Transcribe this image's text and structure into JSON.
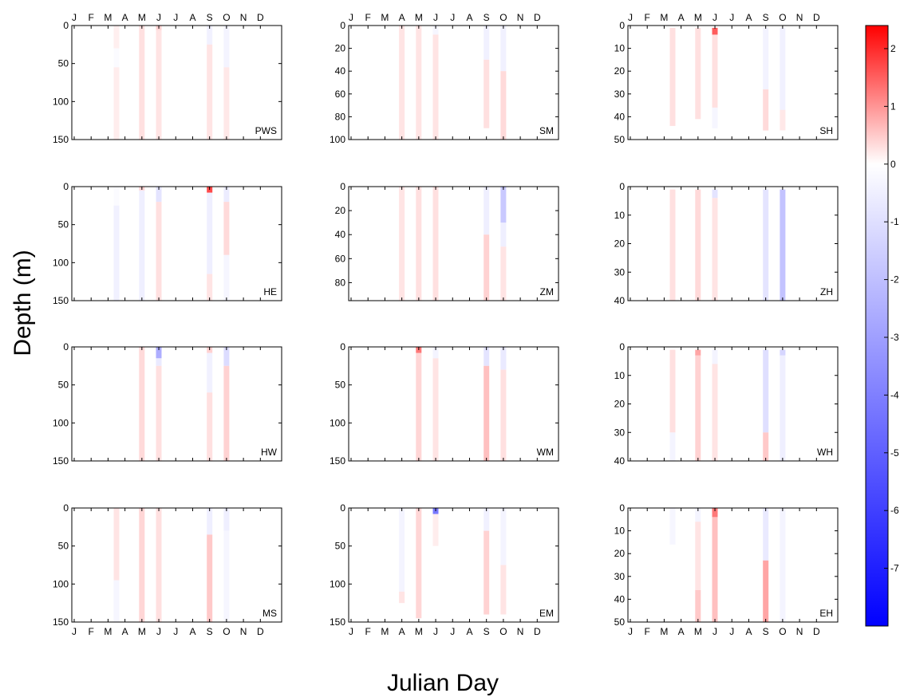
{
  "figure": {
    "xlabel": "Julian Day",
    "ylabel": "Depth (m)"
  },
  "months": [
    "J",
    "F",
    "M",
    "A",
    "M",
    "J",
    "J",
    "A",
    "S",
    "O",
    "N",
    "D"
  ],
  "colorbar": {
    "ticks": [
      "2",
      "1",
      "0",
      "-1",
      "-2",
      "-3",
      "-4",
      "-5",
      "-6",
      "-7"
    ],
    "tick_values": [
      2,
      1,
      0,
      -1,
      -2,
      -3,
      -4,
      -5,
      -6,
      -7
    ],
    "range": [
      -8,
      2.4
    ],
    "colors": {
      "max": "#ff0000",
      "zero": "#ffffff",
      "min": "#0000ff"
    }
  },
  "chart_data": [
    {
      "type": "heatmap",
      "label": "PWS",
      "ylim": [
        0,
        150
      ],
      "yticks": [
        0,
        50,
        100,
        150
      ],
      "profiles": [
        {
          "month": 3.5,
          "top": 0,
          "bottom": 150,
          "segments": [
            [
              0,
              30,
              0.18
            ],
            [
              30,
              55,
              -0.15
            ],
            [
              55,
              150,
              0.2
            ]
          ]
        },
        {
          "month": 5.0,
          "top": 0,
          "bottom": 150,
          "segments": [
            [
              0,
              150,
              0.35
            ]
          ]
        },
        {
          "month": 6.0,
          "top": 0,
          "bottom": 150,
          "segments": [
            [
              0,
              6,
              0.5
            ],
            [
              6,
              150,
              0.3
            ]
          ]
        },
        {
          "month": 9.0,
          "top": 0,
          "bottom": 150,
          "segments": [
            [
              0,
              25,
              -0.5
            ],
            [
              25,
              150,
              0.3
            ]
          ]
        },
        {
          "month": 10.0,
          "top": 0,
          "bottom": 150,
          "segments": [
            [
              0,
              55,
              -0.4
            ],
            [
              55,
              150,
              0.25
            ]
          ]
        }
      ]
    },
    {
      "type": "heatmap",
      "label": "SM",
      "ylim": [
        0,
        100
      ],
      "yticks": [
        0,
        20,
        40,
        60,
        80,
        100
      ],
      "profiles": [
        {
          "month": 4.0,
          "top": 0,
          "bottom": 100,
          "segments": [
            [
              0,
              100,
              0.3
            ]
          ]
        },
        {
          "month": 5.0,
          "top": 0,
          "bottom": 100,
          "segments": [
            [
              0,
              100,
              0.3
            ]
          ]
        },
        {
          "month": 6.0,
          "top": 0,
          "bottom": 100,
          "segments": [
            [
              0,
              8,
              -0.3
            ],
            [
              8,
              100,
              0.3
            ]
          ]
        },
        {
          "month": 9.0,
          "top": 0,
          "bottom": 90,
          "segments": [
            [
              0,
              30,
              -0.5
            ],
            [
              30,
              90,
              0.35
            ]
          ]
        },
        {
          "month": 10.0,
          "top": 0,
          "bottom": 100,
          "segments": [
            [
              0,
              40,
              -0.5
            ],
            [
              40,
              100,
              0.4
            ]
          ]
        }
      ]
    },
    {
      "type": "heatmap",
      "label": "SH",
      "ylim": [
        0,
        50
      ],
      "yticks": [
        0,
        10,
        20,
        30,
        40,
        50
      ],
      "profiles": [
        {
          "month": 3.5,
          "top": 1,
          "bottom": 44,
          "segments": [
            [
              1,
              44,
              0.35
            ]
          ]
        },
        {
          "month": 5.0,
          "top": 1,
          "bottom": 41,
          "segments": [
            [
              1,
              41,
              0.35
            ]
          ]
        },
        {
          "month": 6.0,
          "top": 1,
          "bottom": 45,
          "segments": [
            [
              1,
              4,
              1.8
            ],
            [
              4,
              36,
              0.35
            ],
            [
              36,
              45,
              -0.3
            ]
          ]
        },
        {
          "month": 9.0,
          "top": 1,
          "bottom": 46,
          "segments": [
            [
              1,
              28,
              -0.45
            ],
            [
              28,
              46,
              0.4
            ]
          ]
        },
        {
          "month": 10.0,
          "top": 1,
          "bottom": 46,
          "segments": [
            [
              1,
              37,
              -0.5
            ],
            [
              37,
              46,
              0.25
            ]
          ]
        }
      ]
    },
    {
      "type": "heatmap",
      "label": "HE",
      "ylim": [
        0,
        150
      ],
      "yticks": [
        0,
        50,
        100,
        150
      ],
      "profiles": [
        {
          "month": 3.5,
          "top": 0,
          "bottom": 150,
          "segments": [
            [
              0,
              25,
              -0.15
            ],
            [
              25,
              150,
              -0.5
            ]
          ]
        },
        {
          "month": 5.0,
          "top": 0,
          "bottom": 150,
          "segments": [
            [
              0,
              5,
              0.5
            ],
            [
              5,
              150,
              -0.6
            ]
          ]
        },
        {
          "month": 6.0,
          "top": 0,
          "bottom": 150,
          "segments": [
            [
              0,
              20,
              -1.0
            ],
            [
              20,
              150,
              0.35
            ]
          ]
        },
        {
          "month": 9.0,
          "top": 0,
          "bottom": 150,
          "segments": [
            [
              0,
              8,
              2.0
            ],
            [
              8,
              115,
              -0.6
            ],
            [
              115,
              150,
              0.3
            ]
          ]
        },
        {
          "month": 10.0,
          "top": 0,
          "bottom": 150,
          "segments": [
            [
              0,
              20,
              -0.7
            ],
            [
              20,
              90,
              0.4
            ],
            [
              90,
              150,
              -0.3
            ]
          ]
        }
      ]
    },
    {
      "type": "heatmap",
      "label": "ZM",
      "ylim": [
        0,
        95
      ],
      "yticks": [
        0,
        20,
        40,
        60,
        80
      ],
      "profiles": [
        {
          "month": 4.0,
          "top": 0,
          "bottom": 95,
          "segments": [
            [
              0,
              95,
              0.3
            ]
          ]
        },
        {
          "month": 5.0,
          "top": 0,
          "bottom": 95,
          "segments": [
            [
              0,
              95,
              0.35
            ]
          ]
        },
        {
          "month": 6.0,
          "top": 0,
          "bottom": 95,
          "segments": [
            [
              0,
              95,
              0.35
            ]
          ]
        },
        {
          "month": 9.0,
          "top": 0,
          "bottom": 95,
          "segments": [
            [
              0,
              40,
              -0.6
            ],
            [
              40,
              95,
              0.5
            ]
          ]
        },
        {
          "month": 10.0,
          "top": 0,
          "bottom": 95,
          "segments": [
            [
              0,
              30,
              -2.0
            ],
            [
              30,
              50,
              -0.6
            ],
            [
              50,
              95,
              0.3
            ]
          ]
        }
      ]
    },
    {
      "type": "heatmap",
      "label": "ZH",
      "ylim": [
        0,
        40
      ],
      "yticks": [
        0,
        10,
        20,
        30,
        40
      ],
      "profiles": [
        {
          "month": 3.5,
          "top": 1,
          "bottom": 40,
          "segments": [
            [
              1,
              40,
              0.35
            ]
          ]
        },
        {
          "month": 5.0,
          "top": 1,
          "bottom": 40,
          "segments": [
            [
              1,
              40,
              0.4
            ]
          ]
        },
        {
          "month": 6.0,
          "top": 1,
          "bottom": 40,
          "segments": [
            [
              1,
              4,
              -1.0
            ],
            [
              4,
              40,
              0.3
            ]
          ]
        },
        {
          "month": 9.0,
          "top": 1,
          "bottom": 40,
          "segments": [
            [
              1,
              40,
              -1.0
            ]
          ]
        },
        {
          "month": 10.0,
          "top": 1,
          "bottom": 40,
          "segments": [
            [
              1,
              40,
              -2.2
            ]
          ]
        }
      ]
    },
    {
      "type": "heatmap",
      "label": "HW",
      "ylim": [
        0,
        150
      ],
      "yticks": [
        0,
        50,
        100,
        150
      ],
      "profiles": [
        {
          "month": 5.0,
          "top": 0,
          "bottom": 150,
          "segments": [
            [
              0,
              150,
              0.4
            ]
          ]
        },
        {
          "month": 6.0,
          "top": 0,
          "bottom": 150,
          "segments": [
            [
              0,
              15,
              -3.0
            ],
            [
              15,
              25,
              -0.8
            ],
            [
              25,
              150,
              0.35
            ]
          ]
        },
        {
          "month": 9.0,
          "top": 0,
          "bottom": 150,
          "segments": [
            [
              0,
              8,
              0.5
            ],
            [
              8,
              60,
              -0.5
            ],
            [
              60,
              150,
              0.35
            ]
          ]
        },
        {
          "month": 10.0,
          "top": 0,
          "bottom": 150,
          "segments": [
            [
              0,
              25,
              -1.3
            ],
            [
              25,
              150,
              0.5
            ]
          ]
        }
      ]
    },
    {
      "type": "heatmap",
      "label": "WM",
      "ylim": [
        0,
        150
      ],
      "yticks": [
        0,
        50,
        100,
        150
      ],
      "profiles": [
        {
          "month": 5.0,
          "top": 0,
          "bottom": 150,
          "segments": [
            [
              0,
              8,
              1.5
            ],
            [
              8,
              150,
              0.45
            ]
          ]
        },
        {
          "month": 6.0,
          "top": 0,
          "bottom": 150,
          "segments": [
            [
              0,
              15,
              -0.4
            ],
            [
              15,
              150,
              0.3
            ]
          ]
        },
        {
          "month": 9.0,
          "top": 0,
          "bottom": 150,
          "segments": [
            [
              0,
              25,
              -1.0
            ],
            [
              25,
              150,
              0.7
            ]
          ]
        },
        {
          "month": 10.0,
          "top": 0,
          "bottom": 150,
          "segments": [
            [
              0,
              30,
              -0.8
            ],
            [
              30,
              150,
              0.35
            ]
          ]
        }
      ]
    },
    {
      "type": "heatmap",
      "label": "WH",
      "ylim": [
        0,
        40
      ],
      "yticks": [
        0,
        10,
        20,
        30,
        40
      ],
      "profiles": [
        {
          "month": 3.5,
          "top": 1,
          "bottom": 40,
          "segments": [
            [
              1,
              30,
              0.35
            ],
            [
              30,
              40,
              -0.4
            ]
          ]
        },
        {
          "month": 5.0,
          "top": 1,
          "bottom": 40,
          "segments": [
            [
              1,
              3,
              1.0
            ],
            [
              3,
              40,
              0.5
            ]
          ]
        },
        {
          "month": 6.0,
          "top": 1,
          "bottom": 40,
          "segments": [
            [
              1,
              6,
              -0.4
            ],
            [
              6,
              40,
              0.3
            ]
          ]
        },
        {
          "month": 9.0,
          "top": 1,
          "bottom": 40,
          "segments": [
            [
              1,
              30,
              -1.2
            ],
            [
              30,
              40,
              0.6
            ]
          ]
        },
        {
          "month": 10.0,
          "top": 1,
          "bottom": 40,
          "segments": [
            [
              1,
              3,
              -1.5
            ],
            [
              3,
              40,
              -0.6
            ]
          ]
        }
      ]
    },
    {
      "type": "heatmap",
      "label": "MS",
      "ylim": [
        0,
        150
      ],
      "yticks": [
        0,
        50,
        100,
        150
      ],
      "profiles": [
        {
          "month": 3.5,
          "top": 0,
          "bottom": 150,
          "segments": [
            [
              0,
              95,
              0.3
            ],
            [
              95,
              150,
              -0.3
            ]
          ]
        },
        {
          "month": 5.0,
          "top": 0,
          "bottom": 150,
          "segments": [
            [
              0,
              150,
              0.45
            ]
          ]
        },
        {
          "month": 6.0,
          "top": 0,
          "bottom": 150,
          "segments": [
            [
              0,
              150,
              0.35
            ]
          ]
        },
        {
          "month": 9.0,
          "top": 0,
          "bottom": 150,
          "segments": [
            [
              0,
              35,
              -0.6
            ],
            [
              35,
              150,
              0.6
            ]
          ]
        },
        {
          "month": 10.0,
          "top": 0,
          "bottom": 150,
          "segments": [
            [
              0,
              30,
              -0.6
            ],
            [
              30,
              150,
              -0.3
            ]
          ]
        }
      ]
    },
    {
      "type": "heatmap",
      "label": "EM",
      "ylim": [
        0,
        150
      ],
      "yticks": [
        0,
        50,
        100,
        150
      ],
      "profiles": [
        {
          "month": 4.0,
          "top": 0,
          "bottom": 125,
          "segments": [
            [
              0,
              110,
              -0.4
            ],
            [
              110,
              125,
              0.3
            ]
          ]
        },
        {
          "month": 5.0,
          "top": 0,
          "bottom": 145,
          "segments": [
            [
              0,
              145,
              0.45
            ]
          ]
        },
        {
          "month": 6.0,
          "top": 0,
          "bottom": 50,
          "segments": [
            [
              0,
              8,
              -5.0
            ],
            [
              8,
              50,
              0.2
            ]
          ]
        },
        {
          "month": 9.0,
          "top": 0,
          "bottom": 140,
          "segments": [
            [
              0,
              30,
              -0.5
            ],
            [
              30,
              140,
              0.5
            ]
          ]
        },
        {
          "month": 10.0,
          "top": 0,
          "bottom": 140,
          "segments": [
            [
              0,
              75,
              -0.4
            ],
            [
              75,
              140,
              0.3
            ]
          ]
        }
      ]
    },
    {
      "type": "heatmap",
      "label": "EH",
      "ylim": [
        0,
        50
      ],
      "yticks": [
        0,
        10,
        20,
        30,
        40,
        50
      ],
      "profiles": [
        {
          "month": 3.5,
          "top": 0,
          "bottom": 16,
          "segments": [
            [
              0,
              16,
              -0.3
            ]
          ]
        },
        {
          "month": 5.0,
          "top": 0,
          "bottom": 50,
          "segments": [
            [
              0,
              6,
              -0.4
            ],
            [
              6,
              36,
              0.3
            ],
            [
              36,
              50,
              0.6
            ]
          ]
        },
        {
          "month": 6.0,
          "top": 0,
          "bottom": 50,
          "segments": [
            [
              0,
              4,
              1.5
            ],
            [
              4,
              50,
              0.7
            ]
          ]
        },
        {
          "month": 9.0,
          "top": 0,
          "bottom": 50,
          "segments": [
            [
              0,
              23,
              -0.8
            ],
            [
              23,
              50,
              1.0
            ]
          ]
        },
        {
          "month": 10.0,
          "top": 0,
          "bottom": 50,
          "segments": [
            [
              0,
              50,
              -0.4
            ]
          ]
        }
      ]
    }
  ]
}
